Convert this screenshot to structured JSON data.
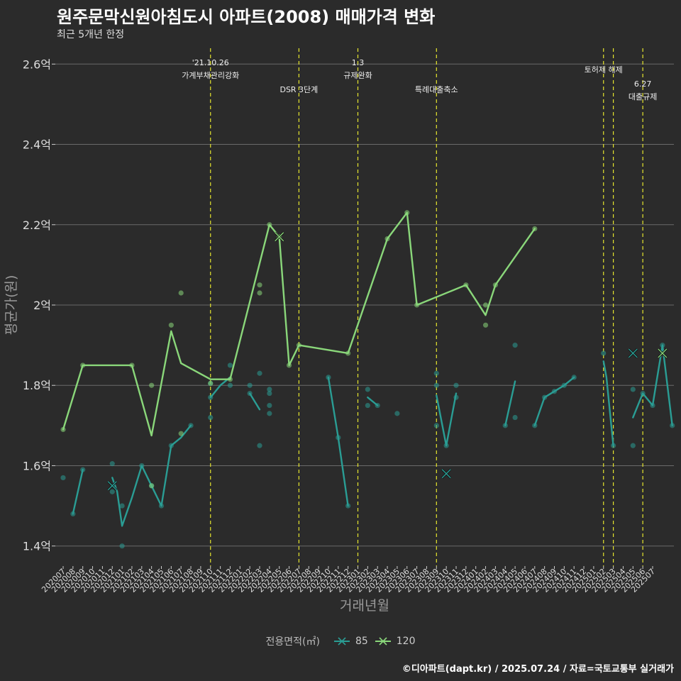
{
  "title": "원주문막신원아침도시 아파트(2008) 매매가격 변화",
  "subtitle": "최근 5개년 한정",
  "caption": "©디아파트(dapt.kr) / 2025.07.24 / 자료=국토교통부 실거래가",
  "legend": {
    "title": "전용면적(㎡)",
    "items": [
      {
        "label": "85",
        "color": "#2a9d94"
      },
      {
        "label": "120",
        "color": "#8ad77a"
      }
    ]
  },
  "chart_data": {
    "type": "line",
    "xlabel": "거래년월",
    "ylabel": "평균가(원)",
    "ylim": [
      1.35,
      2.65
    ],
    "yticks": [
      1.4,
      1.6,
      1.8,
      2.0,
      2.2,
      2.4,
      2.6
    ],
    "ytick_labels": [
      "1.4억",
      "1.6억",
      "1.8억",
      "2억",
      "2.2억",
      "2.4억",
      "2.6억"
    ],
    "categories": [
      "202007",
      "202008",
      "202009",
      "202010",
      "202011",
      "202012",
      "202101",
      "202102",
      "202103",
      "202104",
      "202105",
      "202106",
      "202107",
      "202108",
      "202109",
      "202110",
      "202111",
      "202112",
      "202201",
      "202202",
      "202203",
      "202204",
      "202205",
      "202206",
      "202207",
      "202208",
      "202209",
      "202210",
      "202211",
      "202212",
      "202301",
      "202302",
      "202303",
      "202304",
      "202305",
      "202306",
      "202307",
      "202308",
      "202309",
      "202310",
      "202311",
      "202312",
      "202401",
      "202402",
      "202403",
      "202404",
      "202405",
      "202406",
      "202407",
      "202408",
      "202409",
      "202410",
      "202411",
      "202412",
      "202501",
      "202502",
      "202503",
      "202504",
      "202505",
      "202506",
      "202507"
    ],
    "grid": true,
    "series": [
      {
        "name": "85",
        "color": "#2a9d94",
        "line": [
          [
            1,
            1.48
          ],
          [
            2,
            1.59
          ],
          null,
          [
            5,
            1.57
          ],
          [
            5.5,
            1.535
          ],
          [
            6,
            1.45
          ],
          [
            7,
            1.52
          ],
          [
            8,
            1.6
          ],
          [
            9,
            1.55
          ],
          [
            10,
            1.5
          ],
          [
            11,
            1.65
          ],
          [
            12,
            1.67
          ],
          [
            13,
            1.7
          ],
          null,
          [
            15,
            1.77
          ],
          [
            16,
            1.8
          ],
          [
            17,
            1.82
          ],
          null,
          [
            19,
            1.78
          ],
          [
            20,
            1.74
          ],
          null,
          [
            27,
            1.82
          ],
          [
            28,
            1.67
          ],
          [
            29,
            1.5
          ],
          null,
          [
            31,
            1.77
          ],
          [
            32,
            1.75
          ],
          null,
          [
            38,
            1.775
          ],
          [
            39,
            1.65
          ],
          [
            40,
            1.78
          ],
          null,
          [
            45,
            1.7
          ],
          [
            46,
            1.81
          ],
          null,
          [
            48,
            1.7
          ],
          [
            49,
            1.77
          ],
          [
            50,
            1.785
          ],
          [
            51,
            1.8
          ],
          [
            52,
            1.82
          ],
          null,
          [
            55,
            1.86
          ],
          [
            55.3,
            1.82
          ],
          [
            56,
            1.65
          ],
          null,
          [
            58,
            1.72
          ],
          [
            59,
            1.78
          ],
          [
            60,
            1.75
          ],
          [
            61,
            1.9
          ],
          [
            62,
            1.7
          ]
        ],
        "points": [
          [
            0,
            1.57
          ],
          [
            1,
            1.48
          ],
          [
            2,
            1.59
          ],
          [
            5,
            1.605
          ],
          [
            5,
            1.535
          ],
          [
            6,
            1.5
          ],
          [
            6,
            1.4
          ],
          [
            8,
            1.6
          ],
          [
            9,
            1.55
          ],
          [
            10,
            1.5
          ],
          [
            11,
            1.65
          ],
          [
            13,
            1.7
          ],
          [
            15,
            1.72
          ],
          [
            15,
            1.77
          ],
          [
            15,
            1.805
          ],
          [
            17,
            1.85
          ],
          [
            17,
            1.8
          ],
          [
            19,
            1.8
          ],
          [
            19,
            1.78
          ],
          [
            20,
            1.83
          ],
          [
            20,
            1.65
          ],
          [
            21,
            1.79
          ],
          [
            21,
            1.78
          ],
          [
            21,
            1.75
          ],
          [
            21,
            1.73
          ],
          [
            27,
            1.82
          ],
          [
            28,
            1.67
          ],
          [
            29,
            1.5
          ],
          [
            31,
            1.79
          ],
          [
            31,
            1.75
          ],
          [
            32,
            1.75
          ],
          [
            34,
            1.73
          ],
          [
            38,
            1.83
          ],
          [
            38,
            1.8
          ],
          [
            38,
            1.7
          ],
          [
            39,
            1.65
          ],
          [
            40,
            1.77
          ],
          [
            40,
            1.8
          ],
          [
            45,
            1.7
          ],
          [
            46,
            1.9
          ],
          [
            46,
            1.72
          ],
          [
            48,
            1.7
          ],
          [
            49,
            1.77
          ],
          [
            50,
            1.785
          ],
          [
            51,
            1.8
          ],
          [
            52,
            1.82
          ],
          [
            55,
            1.88
          ],
          [
            56,
            1.65
          ],
          [
            58,
            1.79
          ],
          [
            58,
            1.65
          ],
          [
            59,
            1.78
          ],
          [
            60,
            1.75
          ],
          [
            61,
            1.9
          ],
          [
            62,
            1.7
          ]
        ],
        "cross": [
          [
            5,
            1.55
          ],
          [
            39,
            1.58
          ],
          [
            58,
            1.88
          ]
        ]
      },
      {
        "name": "120",
        "color": "#8ad77a",
        "line": [
          [
            0,
            1.69
          ],
          [
            2,
            1.85
          ],
          [
            7,
            1.85
          ],
          [
            9,
            1.675
          ],
          [
            11,
            1.935
          ],
          [
            12,
            1.855
          ],
          [
            15,
            1.815
          ],
          [
            17,
            1.815
          ],
          [
            21,
            2.2
          ],
          [
            22,
            2.17
          ],
          [
            23,
            1.85
          ],
          [
            24,
            1.9
          ],
          [
            29,
            1.88
          ],
          [
            33,
            2.165
          ],
          [
            35,
            2.23
          ],
          [
            36,
            2.0
          ],
          [
            41,
            2.05
          ],
          [
            43,
            1.975
          ],
          [
            44,
            2.05
          ],
          [
            48,
            2.19
          ]
        ],
        "points": [
          [
            0,
            1.69
          ],
          [
            2,
            1.85
          ],
          [
            7,
            1.85
          ],
          [
            9,
            1.8
          ],
          [
            9,
            1.55
          ],
          [
            11,
            1.95
          ],
          [
            12,
            2.03
          ],
          [
            12,
            1.68
          ],
          [
            15,
            1.805
          ],
          [
            17,
            1.815
          ],
          [
            20,
            2.05
          ],
          [
            20,
            2.03
          ],
          [
            21,
            2.2
          ],
          [
            22,
            2.17
          ],
          [
            23,
            1.85
          ],
          [
            24,
            1.9
          ],
          [
            29,
            1.88
          ],
          [
            33,
            2.165
          ],
          [
            35,
            2.23
          ],
          [
            36,
            2.0
          ],
          [
            41,
            2.05
          ],
          [
            43,
            2.0
          ],
          [
            43,
            1.95
          ],
          [
            44,
            2.05
          ],
          [
            48,
            2.19
          ]
        ],
        "cross": [
          [
            22,
            2.17
          ],
          [
            61,
            1.88
          ]
        ]
      }
    ],
    "events": [
      {
        "x": 15,
        "lines": [
          "'21.10.26",
          "가계부채관리강화"
        ]
      },
      {
        "x": 24,
        "lines": [
          "DSR 3단계"
        ]
      },
      {
        "x": 30,
        "lines": [
          "1.3",
          "규제완화"
        ]
      },
      {
        "x": 38,
        "lines": [
          "특례대출축소"
        ]
      },
      {
        "x": 55,
        "lines": [
          "토허제 해제"
        ]
      },
      {
        "x": 56,
        "lines": []
      },
      {
        "x": 59,
        "lines": [
          "6.27",
          "대출규제"
        ]
      }
    ]
  }
}
